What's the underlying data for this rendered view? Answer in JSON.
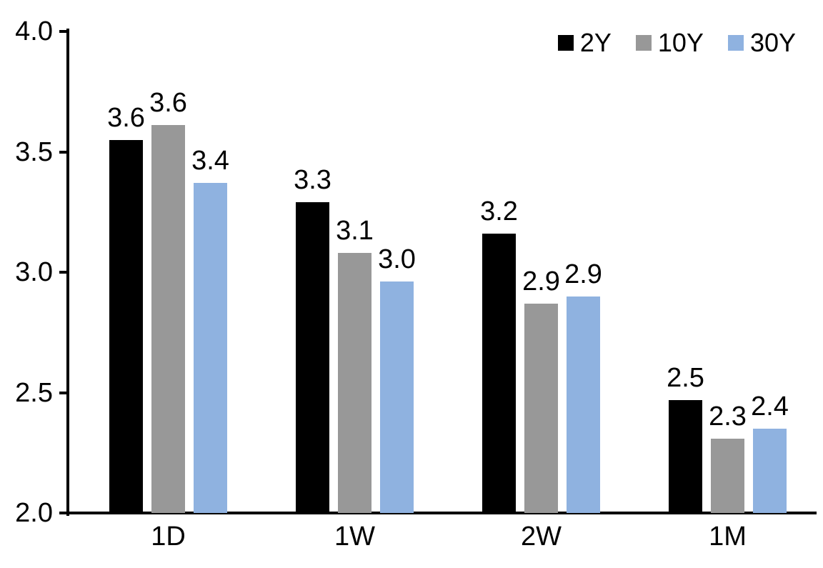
{
  "chart_data": {
    "type": "bar",
    "categories": [
      "1D",
      "1W",
      "2W",
      "1M"
    ],
    "series": [
      {
        "name": "2Y",
        "color": "#000000",
        "values": [
          3.55,
          3.29,
          3.16,
          2.47
        ],
        "labels": [
          "3.6",
          "3.3",
          "3.2",
          "2.5"
        ]
      },
      {
        "name": "10Y",
        "color": "#989898",
        "values": [
          3.61,
          3.08,
          2.87,
          2.31
        ],
        "labels": [
          "3.6",
          "3.1",
          "2.9",
          "2.3"
        ]
      },
      {
        "name": "30Y",
        "color": "#8FB2E0",
        "values": [
          3.37,
          2.96,
          2.9,
          2.35
        ],
        "labels": [
          "3.4",
          "3.0",
          "2.9",
          "2.4"
        ]
      }
    ],
    "ylim": [
      2.0,
      4.0
    ],
    "yticks": [
      2.0,
      2.5,
      3.0,
      3.5,
      4.0
    ],
    "ytick_labels": [
      "2.0",
      "2.5",
      "3.0",
      "3.5",
      "4.0"
    ],
    "grid": false,
    "legend_position": "top-right",
    "axis_color": "#000000",
    "background_color": "#FFFFFF"
  }
}
